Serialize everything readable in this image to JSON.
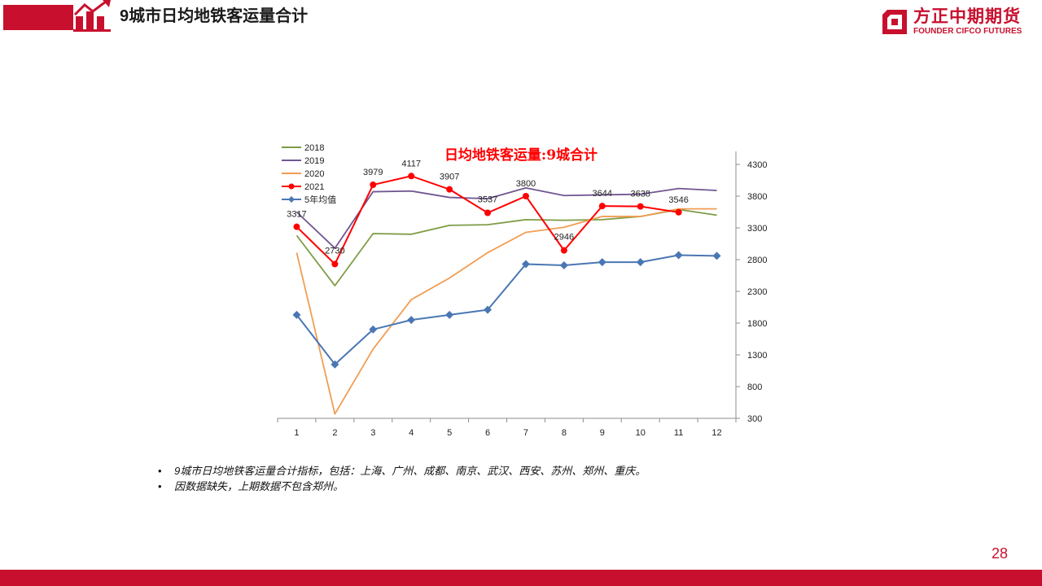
{
  "header": {
    "title": "9城市日均地铁客运量合计"
  },
  "logo": {
    "name_cn": "方正中期期货",
    "name_en": "FOUNDER CIFCO FUTURES"
  },
  "colors": {
    "brand_red": "#c8102e"
  },
  "notes": [
    "9城市日均地铁客运量合计指标，包括：上海、广州、成都、南京、武汉、西安、苏州、郑州、重庆。",
    "因数据缺失，上期数据不包含郑州。"
  ],
  "page_number": "28",
  "chart_data": {
    "type": "line",
    "title": "日均地铁客运量:9城合计",
    "x": [
      "1",
      "2",
      "3",
      "4",
      "5",
      "6",
      "7",
      "8",
      "9",
      "10",
      "11",
      "12"
    ],
    "y_axis": {
      "side": "right",
      "min": 300,
      "max": 4300,
      "ticks": [
        300,
        800,
        1300,
        1800,
        2300,
        2800,
        3300,
        3800,
        4300
      ]
    },
    "legend_position": "top-left",
    "grid": false,
    "series": [
      {
        "name": "2018",
        "color": "#7f9c45",
        "marker": "none",
        "values": [
          3180,
          2390,
          3210,
          3200,
          3340,
          3350,
          3430,
          3420,
          3430,
          3480,
          3590,
          3500
        ]
      },
      {
        "name": "2019",
        "color": "#715691",
        "marker": "none",
        "values": [
          3550,
          2980,
          3870,
          3880,
          3780,
          3760,
          3930,
          3810,
          3820,
          3830,
          3920,
          3890
        ]
      },
      {
        "name": "2020",
        "color": "#f19d52",
        "marker": "none",
        "values": [
          2910,
          370,
          1390,
          2170,
          2510,
          2910,
          3230,
          3310,
          3480,
          3480,
          3600,
          3600
        ]
      },
      {
        "name": "2021",
        "color": "#ff0000",
        "marker": "circle",
        "show_labels": true,
        "values": [
          3317,
          2730,
          3979,
          4117,
          3907,
          3537,
          3800,
          2946,
          3644,
          3638,
          3546,
          null
        ]
      },
      {
        "name": "5年均值",
        "color": "#4a77b4",
        "marker": "diamond",
        "values": [
          1930,
          1150,
          1700,
          1850,
          1930,
          2010,
          2730,
          2710,
          2760,
          2760,
          2870,
          2860
        ]
      }
    ]
  }
}
